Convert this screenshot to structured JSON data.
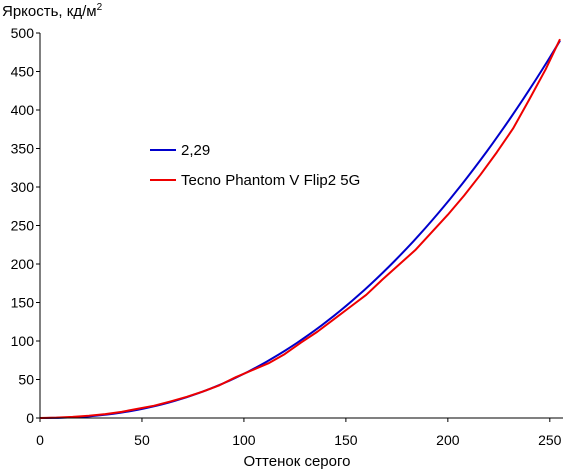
{
  "chart_data": {
    "type": "line",
    "ylabel_main": "Яркость, кд/м",
    "ylabel_sup": "2",
    "xlabel": "Оттенок серого",
    "xlim": [
      0,
      255
    ],
    "ylim": [
      0,
      500
    ],
    "xticks": [
      0,
      50,
      100,
      150,
      200,
      250
    ],
    "yticks": [
      0,
      50,
      100,
      150,
      200,
      250,
      300,
      350,
      400,
      450,
      500
    ],
    "grid": false,
    "legend_position": "center-left",
    "series": [
      {
        "name": "2,29",
        "color": "#0000cc",
        "gamma": 2.29,
        "x_max": 255,
        "y_max": 490
      },
      {
        "name": "Tecno Phantom V Flip2 5G",
        "color": "#ee0000",
        "x": [
          0,
          8,
          16,
          24,
          32,
          40,
          48,
          56,
          64,
          72,
          80,
          88,
          96,
          104,
          112,
          120,
          128,
          136,
          144,
          152,
          160,
          168,
          176,
          184,
          192,
          200,
          208,
          216,
          224,
          232,
          240,
          248,
          255
        ],
        "y": [
          0,
          0.5,
          1.5,
          3,
          5,
          8,
          12,
          16,
          21.5,
          27.5,
          34.5,
          42.5,
          53,
          62,
          71,
          83,
          98,
          112,
          128,
          144,
          160,
          180,
          199,
          218,
          241,
          264,
          289,
          316,
          345,
          376,
          414,
          453,
          492
        ]
      }
    ]
  }
}
